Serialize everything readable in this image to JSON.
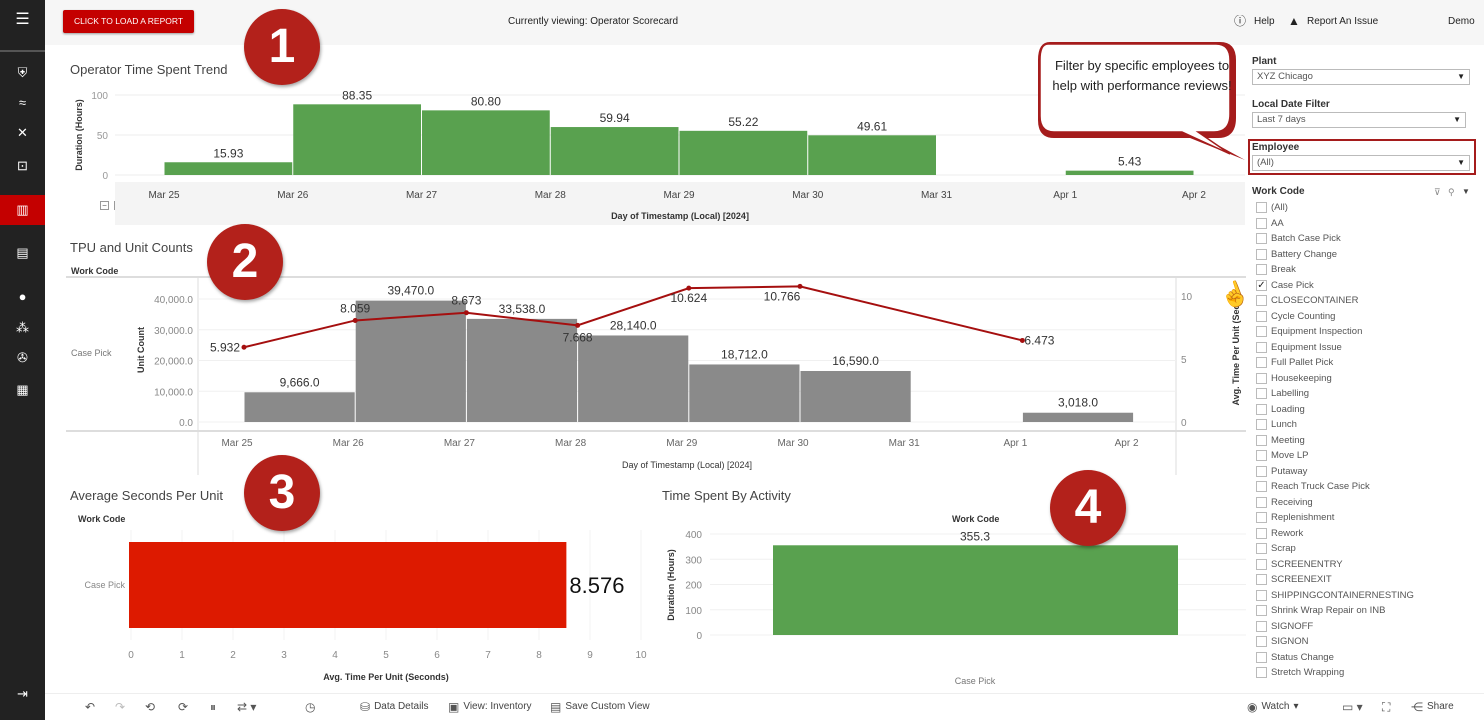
{
  "topbar": {
    "load_button": "CLICK TO LOAD A REPORT",
    "currently_viewing": "Currently viewing: Operator Scorecard",
    "help": "Help",
    "report_issue": "Report An Issue",
    "user": "Demo"
  },
  "sidebar": {
    "icons": [
      "menu-icon",
      "shield-icon",
      "trend-icon",
      "tools-icon",
      "search-report-icon",
      "bar-chart-icon",
      "book-icon",
      "user-icon",
      "users-icon",
      "aperture-icon",
      "calendar-icon",
      "logout-icon"
    ],
    "active": "bar-chart-icon",
    "accent": "#c40000"
  },
  "badges": [
    "1",
    "2",
    "3",
    "4"
  ],
  "callout": "Filter by specific employees to help with performance reviews!",
  "filters": {
    "plant_label": "Plant",
    "plant_value": "XYZ Chicago",
    "date_label": "Local Date Filter",
    "date_value": "Last 7 days",
    "employee_label": "Employee",
    "employee_value": "(All)",
    "work_code_label": "Work Code",
    "work_codes": [
      {
        "label": "(All)",
        "checked": false
      },
      {
        "label": "AA",
        "checked": false
      },
      {
        "label": "Batch Case Pick",
        "checked": false
      },
      {
        "label": "Battery Change",
        "checked": false
      },
      {
        "label": "Break",
        "checked": false
      },
      {
        "label": "Case Pick",
        "checked": true
      },
      {
        "label": "CLOSECONTAINER",
        "checked": false
      },
      {
        "label": "Cycle Counting",
        "checked": false
      },
      {
        "label": "Equipment Inspection",
        "checked": false
      },
      {
        "label": "Equipment Issue",
        "checked": false
      },
      {
        "label": "Full Pallet Pick",
        "checked": false
      },
      {
        "label": "Housekeeping",
        "checked": false
      },
      {
        "label": "Labelling",
        "checked": false
      },
      {
        "label": "Loading",
        "checked": false
      },
      {
        "label": "Lunch",
        "checked": false
      },
      {
        "label": "Meeting",
        "checked": false
      },
      {
        "label": "Move LP",
        "checked": false
      },
      {
        "label": "Putaway",
        "checked": false
      },
      {
        "label": "Reach Truck Case Pick",
        "checked": false
      },
      {
        "label": "Receiving",
        "checked": false
      },
      {
        "label": "Replenishment",
        "checked": false
      },
      {
        "label": "Rework",
        "checked": false
      },
      {
        "label": "Scrap",
        "checked": false
      },
      {
        "label": "SCREENENTRY",
        "checked": false
      },
      {
        "label": "SCREENEXIT",
        "checked": false
      },
      {
        "label": "SHIPPINGCONTAINERNESTING",
        "checked": false
      },
      {
        "label": "Shrink Wrap Repair on INB",
        "checked": false
      },
      {
        "label": "SIGNOFF",
        "checked": false
      },
      {
        "label": "SIGNON",
        "checked": false
      },
      {
        "label": "Status Change",
        "checked": false
      },
      {
        "label": "Stretch Wrapping",
        "checked": false
      }
    ]
  },
  "toolbar": {
    "data_details": "Data Details",
    "view": "View: Inventory",
    "save_view": "Save Custom View",
    "watch": "Watch",
    "share": "Share"
  },
  "chart_data": [
    {
      "type": "bar",
      "title": "Operator Time Spent Trend",
      "ylabel": "Duration (Hours)",
      "xlabel": "Day of Timestamp (Local) [2024]",
      "categories": [
        "Mar 25",
        "Mar 26",
        "Mar 27",
        "Mar 28",
        "Mar 29",
        "Mar 30",
        "Mar 31",
        "Apr 1"
      ],
      "x_ticks": [
        "Mar 25",
        "Mar 26",
        "Mar 27",
        "Mar 28",
        "Mar 29",
        "Mar 30",
        "Mar 31",
        "Apr 1",
        "Apr 2"
      ],
      "values": [
        15.93,
        88.35,
        80.8,
        59.94,
        55.22,
        49.61,
        null,
        5.43
      ],
      "labels": [
        "15.93",
        "88.35",
        "80.80",
        "59.94",
        "55.22",
        "49.61",
        null,
        "5.43"
      ],
      "y_ticks": [
        "0",
        "50",
        "100"
      ],
      "ylim": [
        0,
        100
      ],
      "color": "#59a14f",
      "grid": true
    },
    {
      "type": "bar",
      "title": "TPU and Unit Counts",
      "row_header": "Work Code",
      "row_label": "Case Pick",
      "ylabel": "Unit Count",
      "y2label": "Avg. Time Per Unit (Sec",
      "xlabel": "Day of Timestamp (Local) [2024]",
      "categories": [
        "Mar 25",
        "Mar 26",
        "Mar 27",
        "Mar 28",
        "Mar 29",
        "Mar 30",
        "Mar 31",
        "Apr 1"
      ],
      "x_ticks": [
        "Mar 25",
        "Mar 26",
        "Mar 27",
        "Mar 28",
        "Mar 29",
        "Mar 30",
        "Mar 31",
        "Apr 1",
        "Apr 2"
      ],
      "series": [
        {
          "kind": "bar",
          "values": [
            9666,
            39470,
            33538,
            28140,
            18712,
            16590,
            null,
            3018
          ],
          "labels": [
            "9,666.0",
            "39,470.0",
            "33,538.0",
            "28,140.0",
            "18,712.0",
            "16,590.0",
            null,
            "3,018.0"
          ],
          "color": "#8a8a8a"
        },
        {
          "kind": "line",
          "axis": "right",
          "values": [
            5.932,
            8.059,
            8.673,
            7.668,
            10.624,
            10.766,
            null,
            6.473
          ],
          "labels": [
            "5.932",
            "8.059",
            "8.673",
            "7.668",
            "10.624",
            "10.766",
            null,
            "6.473"
          ],
          "color": "#a50f0f"
        }
      ],
      "y_ticks": [
        "0.0",
        "10,000.0",
        "20,000.0",
        "30,000.0",
        "40,000.0"
      ],
      "y2_ticks": [
        "0",
        "5",
        "10"
      ],
      "ylim": [
        0,
        40000
      ],
      "y2lim": [
        0,
        10
      ],
      "grid": true
    },
    {
      "type": "bar",
      "orientation": "horizontal",
      "title": "Average Seconds Per Unit",
      "row_header": "Work Code",
      "categories": [
        "Case Pick"
      ],
      "values": [
        8.576
      ],
      "labels": [
        "8.576"
      ],
      "xlabel": "Avg. Time Per Unit (Seconds)",
      "x_ticks": [
        "0",
        "1",
        "2",
        "3",
        "4",
        "5",
        "6",
        "7",
        "8",
        "9",
        "10"
      ],
      "xlim": [
        0,
        10
      ],
      "color": "#dd1a00",
      "grid": true
    },
    {
      "type": "bar",
      "title": "Time Spent By Activity",
      "column_header": "Work Code",
      "categories": [
        "Case Pick"
      ],
      "values": [
        355.3
      ],
      "labels": [
        "355.3"
      ],
      "ylabel": "Duration (Hours)",
      "y_ticks": [
        "0",
        "100",
        "200",
        "300",
        "400"
      ],
      "ylim": [
        0,
        400
      ],
      "color": "#59a14f",
      "grid": true
    }
  ]
}
